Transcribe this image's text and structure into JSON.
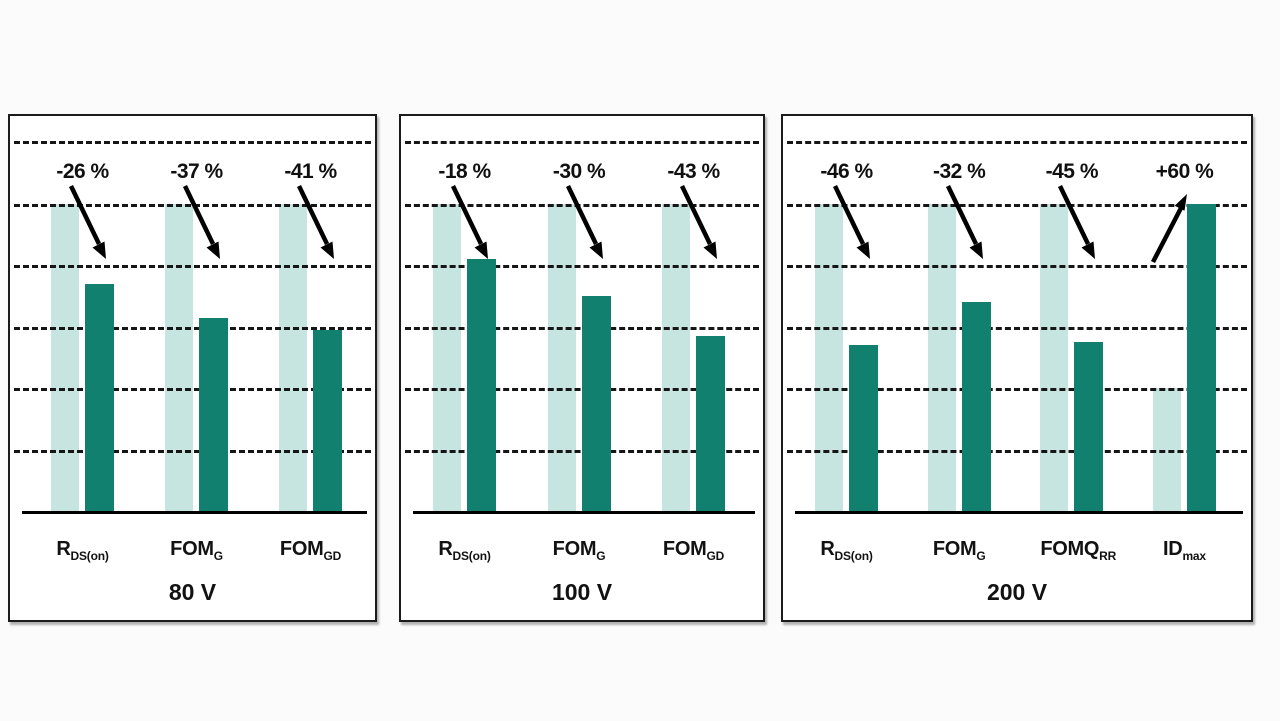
{
  "colors": {
    "baseline_bar": "#c6e4e0",
    "value_bar": "#12806f",
    "grid_line": "#161616",
    "axis_line": "#000000",
    "panel_border": "#1b1b1b",
    "background": "#fbfbfb"
  },
  "panels": [
    {
      "title": "80 V",
      "groups": [
        {
          "label_main": "R",
          "label_sub": "DS(on)",
          "change": "-26 %",
          "baseline_pct": 100,
          "value_pct": 74
        },
        {
          "label_main": "FOM",
          "label_sub": "G",
          "change": "-37 %",
          "baseline_pct": 100,
          "value_pct": 63
        },
        {
          "label_main": "FOM",
          "label_sub": "GD",
          "change": "-41 %",
          "baseline_pct": 100,
          "value_pct": 59
        }
      ]
    },
    {
      "title": "100 V",
      "groups": [
        {
          "label_main": "R",
          "label_sub": "DS(on)",
          "change": "-18 %",
          "baseline_pct": 100,
          "value_pct": 82
        },
        {
          "label_main": "FOM",
          "label_sub": "G",
          "change": "-30 %",
          "baseline_pct": 100,
          "value_pct": 70
        },
        {
          "label_main": "FOM",
          "label_sub": "GD",
          "change": "-43 %",
          "baseline_pct": 100,
          "value_pct": 57
        }
      ]
    },
    {
      "title": "200 V",
      "groups": [
        {
          "label_main": "R",
          "label_sub": "DS(on)",
          "change": "-46 %",
          "baseline_pct": 100,
          "value_pct": 54
        },
        {
          "label_main": "FOM",
          "label_sub": "G",
          "change": "-32 %",
          "baseline_pct": 100,
          "value_pct": 68
        },
        {
          "label_main": "FOMQ",
          "label_sub": "RR",
          "change": "-45 %",
          "baseline_pct": 100,
          "value_pct": 55
        },
        {
          "label_main": "ID",
          "label_sub": "max",
          "change": "+60 %",
          "baseline_pct": 40,
          "value_pct": 100
        }
      ]
    }
  ],
  "chart_data": [
    {
      "type": "bar",
      "title": "80 V",
      "categories": [
        "R_DS(on)",
        "FOM_G",
        "FOM_GD"
      ],
      "series": [
        {
          "name": "light_bar_reference",
          "values": [
            100,
            100,
            100
          ]
        },
        {
          "name": "dark_bar_new",
          "values": [
            74,
            63,
            59
          ]
        }
      ],
      "annotations": [
        "-26 %",
        "-37 %",
        "-41 %"
      ],
      "ylim": [
        0,
        120
      ],
      "gridlines_pct": [
        20,
        40,
        60,
        80,
        100,
        120
      ],
      "grid": "dashed horizontal",
      "legend_position": "none"
    },
    {
      "type": "bar",
      "title": "100 V",
      "categories": [
        "R_DS(on)",
        "FOM_G",
        "FOM_GD"
      ],
      "series": [
        {
          "name": "light_bar_reference",
          "values": [
            100,
            100,
            100
          ]
        },
        {
          "name": "dark_bar_new",
          "values": [
            82,
            70,
            57
          ]
        }
      ],
      "annotations": [
        "-18 %",
        "-30 %",
        "-43 %"
      ],
      "ylim": [
        0,
        120
      ],
      "gridlines_pct": [
        20,
        40,
        60,
        80,
        100,
        120
      ],
      "grid": "dashed horizontal",
      "legend_position": "none"
    },
    {
      "type": "bar",
      "title": "200 V",
      "categories": [
        "R_DS(on)",
        "FOM_G",
        "FOMQ_RR",
        "ID_max"
      ],
      "series": [
        {
          "name": "light_bar_reference",
          "values": [
            100,
            100,
            100,
            40
          ]
        },
        {
          "name": "dark_bar_new",
          "values": [
            54,
            68,
            55,
            100
          ]
        }
      ],
      "annotations": [
        "-46 %",
        "-32 %",
        "-45 %",
        "+60 %"
      ],
      "ylim": [
        0,
        120
      ],
      "gridlines_pct": [
        20,
        40,
        60,
        80,
        100,
        120
      ],
      "grid": "dashed horizontal",
      "legend_position": "none"
    }
  ]
}
